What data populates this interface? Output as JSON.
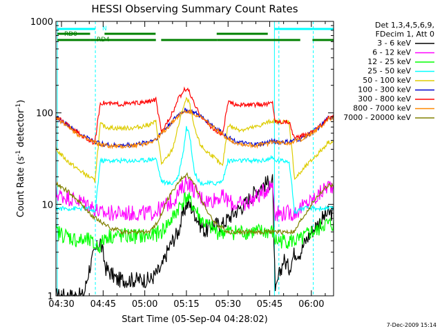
{
  "chart_data": {
    "type": "line",
    "title": "HESSI Observing Summary Count Rates",
    "xlabel": "Start Time (05-Sep-04 04:28:02)",
    "ylabel": "Count Rate (s⁻¹ detector⁻¹)",
    "ylabel_parts": {
      "base": "Count Rate (s",
      "sup1": "-1",
      "mid": " detector",
      "sup2": "-1",
      "end": ")"
    },
    "y_scale": "log",
    "ylim": [
      1,
      1000
    ],
    "xlim_minutes": [
      0,
      100
    ],
    "x_unit": "minutes since 04:28:02",
    "x_ticks": [
      {
        "label": "04:30",
        "t": 2
      },
      {
        "label": "04:45",
        "t": 17
      },
      {
        "label": "05:00",
        "t": 32
      },
      {
        "label": "05:15",
        "t": 47
      },
      {
        "label": "05:30",
        "t": 62
      },
      {
        "label": "05:45",
        "t": 77
      },
      {
        "label": "06:00",
        "t": 92
      }
    ],
    "y_ticks": [
      {
        "label": "1",
        "v": 1
      },
      {
        "label": "10",
        "v": 10
      },
      {
        "label": "100",
        "v": 100
      },
      {
        "label": "1000",
        "v": 1000
      }
    ],
    "legend_header": [
      "Det 1,3,4,5,6,9,",
      "FDecim 1, Att 0"
    ],
    "legend_position": "right",
    "series": [
      {
        "name": "3 - 6 keV",
        "color": "#000000",
        "t": [
          0,
          5,
          10,
          12,
          14,
          16,
          18,
          22,
          26,
          30,
          34,
          38,
          40,
          42,
          44,
          46,
          47,
          48,
          50,
          52,
          54,
          56,
          58,
          60,
          62,
          64,
          66,
          68,
          70,
          72,
          74,
          76,
          78,
          79,
          80,
          82,
          84,
          86,
          88,
          90,
          92,
          94,
          96,
          98
        ],
        "v": [
          1,
          1,
          1,
          2,
          3,
          4,
          2,
          1.5,
          1.5,
          1.5,
          1.5,
          2,
          3,
          4,
          5,
          8,
          10,
          10,
          8,
          6,
          5,
          6,
          6,
          6,
          7,
          8,
          9,
          10,
          12,
          14,
          16,
          17,
          18,
          1,
          1.5,
          2.5,
          2,
          3,
          3,
          4,
          5,
          6,
          7,
          8
        ]
      },
      {
        "name": "6 - 12 keV",
        "color": "#ff00ff",
        "t": [
          0,
          4,
          8,
          12,
          14,
          16,
          18,
          22,
          26,
          30,
          34,
          38,
          40,
          42,
          44,
          46,
          47,
          48,
          50,
          52,
          54,
          56,
          58,
          60,
          62,
          64,
          66,
          68,
          70,
          72,
          74,
          76,
          78,
          79,
          82,
          86,
          88,
          90,
          92,
          94,
          96,
          98
        ],
        "v": [
          13,
          12,
          11,
          10,
          9,
          8,
          8,
          8,
          8,
          8,
          8,
          9,
          10,
          11,
          13,
          16,
          18,
          17,
          14,
          12,
          11,
          11,
          12,
          12,
          11,
          10,
          10,
          10,
          11,
          12,
          13,
          15,
          17,
          8,
          8,
          8,
          9,
          10,
          11,
          12,
          14,
          16
        ]
      },
      {
        "name": "12 - 25 keV",
        "color": "#00ff00",
        "t": [
          0,
          4,
          8,
          12,
          14,
          16,
          18,
          22,
          26,
          30,
          34,
          38,
          40,
          42,
          44,
          46,
          47,
          48,
          50,
          52,
          54,
          56,
          58,
          60,
          62,
          64,
          66,
          68,
          70,
          72,
          74,
          76,
          78,
          79,
          82,
          86,
          88,
          90,
          92,
          94,
          96,
          98
        ],
        "v": [
          5,
          4.5,
          4,
          4,
          3.5,
          3.5,
          4.5,
          4.5,
          4.5,
          4.5,
          4.5,
          5,
          6,
          7,
          9,
          11,
          12,
          11,
          9,
          7,
          6,
          5.5,
          5,
          5,
          5,
          5,
          5,
          5,
          5,
          5,
          5,
          5,
          5,
          4,
          4,
          4,
          4,
          4.5,
          5,
          5,
          6,
          6
        ]
      },
      {
        "name": "25 - 50 keV",
        "color": "#00ffff",
        "t": [
          0,
          4,
          8,
          12,
          14,
          16,
          18,
          22,
          26,
          30,
          34,
          36,
          38,
          40,
          42,
          44,
          46,
          47,
          48,
          50,
          52,
          54,
          56,
          58,
          60,
          62,
          64,
          66,
          68,
          70,
          72,
          74,
          76,
          78,
          79,
          82,
          84,
          86,
          88,
          90,
          92,
          94,
          96,
          98
        ],
        "v": [
          9,
          9,
          9,
          9,
          8,
          30,
          30,
          30,
          30,
          30,
          31,
          32,
          18,
          17,
          17,
          20,
          40,
          70,
          60,
          22,
          17,
          17,
          17,
          17,
          18,
          30,
          30,
          30,
          30,
          30,
          30,
          30,
          31,
          32,
          30,
          30,
          30,
          8,
          9,
          9,
          9,
          9,
          9,
          9
        ]
      },
      {
        "name": "50 - 100 keV",
        "color": "#ddcc00",
        "t": [
          0,
          4,
          8,
          12,
          14,
          16,
          18,
          22,
          26,
          30,
          34,
          36,
          38,
          40,
          42,
          44,
          46,
          47,
          48,
          50,
          52,
          54,
          56,
          58,
          60,
          62,
          64,
          66,
          68,
          70,
          72,
          74,
          76,
          78,
          79,
          82,
          84,
          86,
          88,
          90,
          92,
          94,
          96,
          98
        ],
        "v": [
          40,
          30,
          24,
          20,
          18,
          75,
          70,
          68,
          68,
          70,
          75,
          80,
          28,
          32,
          40,
          70,
          120,
          140,
          130,
          65,
          45,
          38,
          35,
          30,
          26,
          75,
          68,
          66,
          66,
          68,
          70,
          74,
          78,
          82,
          80,
          80,
          80,
          19,
          22,
          26,
          30,
          35,
          40,
          48
        ]
      },
      {
        "name": "100 - 300 keV",
        "color": "#0000cc",
        "t": [
          0,
          4,
          8,
          12,
          16,
          20,
          24,
          28,
          32,
          36,
          40,
          44,
          46,
          47,
          48,
          50,
          52,
          56,
          60,
          64,
          68,
          72,
          76,
          78,
          80,
          84,
          88,
          92,
          96,
          98
        ],
        "v": [
          90,
          75,
          60,
          52,
          46,
          44,
          44,
          45,
          47,
          52,
          70,
          95,
          105,
          107,
          105,
          100,
          92,
          75,
          60,
          50,
          46,
          45,
          47,
          50,
          48,
          48,
          52,
          60,
          75,
          88
        ]
      },
      {
        "name": "300 - 800 keV",
        "color": "#ff0000",
        "t": [
          0,
          4,
          8,
          12,
          14,
          16,
          20,
          24,
          28,
          32,
          34,
          36,
          38,
          40,
          42,
          44,
          46,
          47,
          48,
          50,
          52,
          54,
          56,
          58,
          60,
          62,
          64,
          68,
          72,
          76,
          78,
          79,
          82,
          84,
          86,
          88,
          92,
          96,
          98
        ],
        "v": [
          90,
          75,
          60,
          50,
          47,
          130,
          125,
          125,
          127,
          130,
          135,
          140,
          60,
          80,
          100,
          140,
          175,
          185,
          170,
          120,
          95,
          80,
          70,
          62,
          58,
          130,
          125,
          122,
          123,
          125,
          130,
          80,
          80,
          80,
          52,
          55,
          62,
          75,
          88
        ]
      },
      {
        "name": "800 - 7000 keV",
        "color": "#ff8800",
        "t": [
          0,
          4,
          8,
          12,
          16,
          20,
          24,
          28,
          32,
          36,
          40,
          44,
          46,
          47,
          48,
          50,
          52,
          56,
          60,
          64,
          68,
          72,
          76,
          78,
          80,
          84,
          88,
          92,
          96,
          98
        ],
        "v": [
          88,
          73,
          58,
          50,
          45,
          43,
          43,
          44,
          46,
          51,
          68,
          92,
          102,
          104,
          102,
          98,
          90,
          73,
          58,
          48,
          45,
          44,
          46,
          49,
          47,
          47,
          51,
          59,
          73,
          86
        ]
      },
      {
        "name": "7000 - 20000 keV",
        "color": "#808000",
        "t": [
          0,
          4,
          8,
          12,
          16,
          20,
          24,
          28,
          32,
          34,
          36,
          38,
          40,
          42,
          44,
          46,
          47,
          48,
          50,
          52,
          54,
          56,
          58,
          60,
          62,
          64,
          66,
          68,
          70,
          72,
          74,
          76,
          78,
          80,
          82,
          84,
          86,
          88,
          90,
          92,
          94,
          96,
          98
        ],
        "v": [
          17,
          14,
          11,
          8,
          6.5,
          5.5,
          5,
          5,
          5,
          5,
          6,
          8,
          11,
          14,
          17,
          20,
          21,
          20,
          16,
          12,
          9,
          7,
          6,
          5.5,
          5,
          5,
          5,
          5,
          5,
          5,
          5,
          5,
          5,
          5,
          5,
          5,
          5,
          6.5,
          8,
          10,
          12,
          14,
          16
        ]
      }
    ],
    "vertical_lines": [
      {
        "t": 0.5,
        "style": "solid"
      },
      {
        "t": 14.2,
        "style": "dashed"
      },
      {
        "t": 78.7,
        "style": "solid"
      },
      {
        "t": 80.3,
        "style": "dashed"
      },
      {
        "t": 92.7,
        "style": "dashed"
      }
    ],
    "flag_bars": {
      "N": {
        "label": "N",
        "color": "#00ffff",
        "segments": [
          [
            0.5,
            14.2
          ],
          [
            78.7,
            80.3
          ],
          [
            80.3,
            92.7
          ],
          [
            92.7,
            100
          ]
        ]
      },
      "RD0": {
        "label": "RD0",
        "color": "#008000",
        "segments": [
          [
            0.5,
            12.3
          ],
          [
            17.5,
            35.9
          ],
          [
            57.9,
            76.3
          ]
        ]
      },
      "RD4": {
        "label": "RD4",
        "color": "#008000",
        "segments": [
          [
            0.5,
            12.3
          ],
          [
            12.3,
            36.0
          ],
          [
            37.9,
            58.0
          ],
          [
            58.0,
            88.0
          ],
          [
            92.4,
            100
          ]
        ]
      }
    }
  },
  "footer": {
    "date": "7-Dec-2009 15:14"
  }
}
